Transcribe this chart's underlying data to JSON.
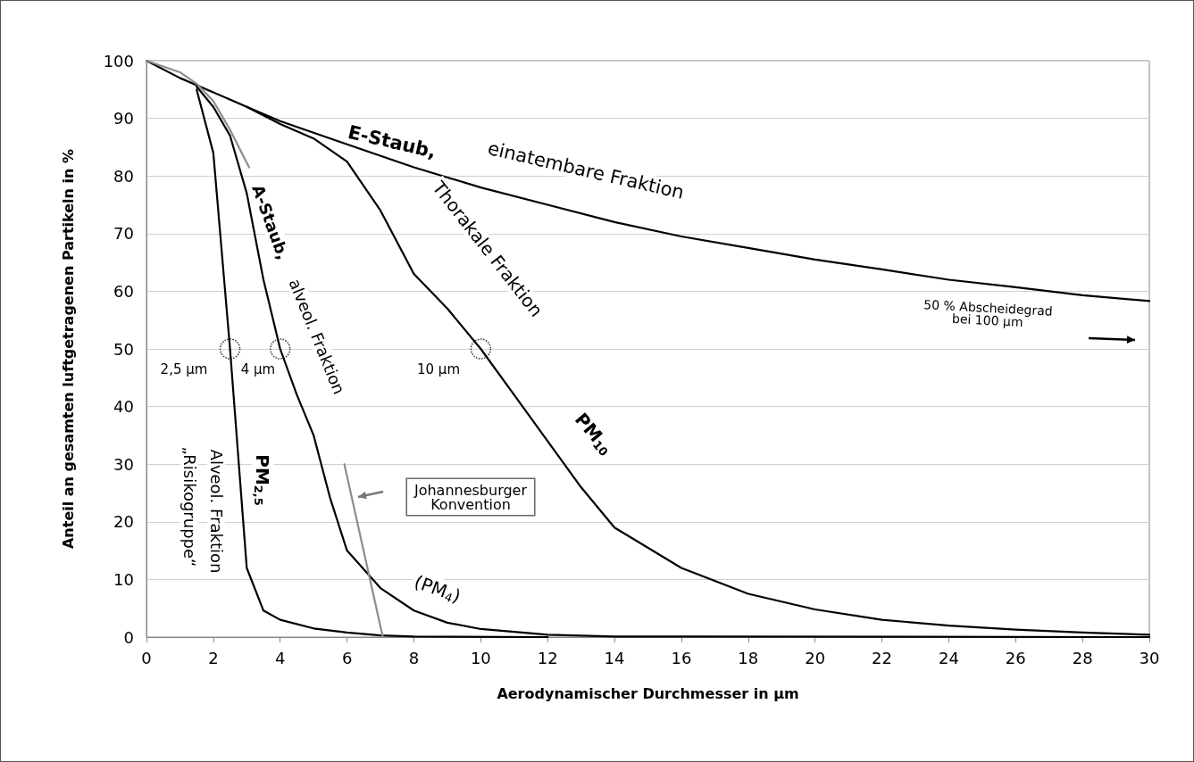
{
  "chart_data": {
    "type": "line",
    "xlabel": "Aerodynamischer Durchmesser in µm",
    "ylabel": "Anteil an gesamten luftgetragenen Partikeln in %",
    "xlim": [
      0,
      30
    ],
    "xticks": [
      0,
      2,
      4,
      6,
      8,
      10,
      12,
      14,
      16,
      18,
      20,
      22,
      24,
      26,
      28,
      30
    ],
    "ylim": [
      0,
      100
    ],
    "yticks": [
      0,
      10,
      20,
      30,
      40,
      50,
      60,
      70,
      80,
      90,
      100
    ],
    "grid": "y",
    "marker": "none",
    "line_style": "solid",
    "series": [
      {
        "color": "#000000",
        "x": [
          0,
          1,
          2,
          3,
          4,
          6,
          8,
          10,
          12,
          14,
          16,
          18,
          20,
          22,
          24,
          26,
          28,
          30
        ],
        "values": [
          100,
          97,
          94.5,
          92,
          89.5,
          85.5,
          81.5,
          78,
          75,
          72,
          69.5,
          67.5,
          65.5,
          63.8,
          62,
          60.7,
          59.3,
          58.3
        ]
      },
      {
        "color": "#000000",
        "x": [
          3,
          4,
          5,
          6,
          7,
          8,
          9,
          10,
          11,
          12,
          13,
          14,
          16,
          18,
          20,
          22,
          24,
          26,
          28,
          30
        ],
        "values": [
          92,
          89,
          86.5,
          82.5,
          74,
          63,
          57,
          50,
          42,
          34,
          26,
          19,
          12,
          7.5,
          4.8,
          3,
          2,
          1.3,
          0.8,
          0.4
        ]
      },
      {
        "color": "#000000",
        "x": [
          1.5,
          2,
          2.5,
          3,
          3.5,
          4,
          4.5,
          5,
          5.5,
          6,
          7,
          8,
          9,
          10,
          12,
          14,
          30
        ],
        "values": [
          95.5,
          92,
          87,
          77,
          62,
          50,
          42,
          35,
          24,
          15,
          8.5,
          4.6,
          2.5,
          1.4,
          0.4,
          0.1,
          0
        ]
      },
      {
        "color": "#000000",
        "x": [
          1.5,
          2,
          2.5,
          3,
          3.5,
          4,
          5,
          6,
          7,
          8,
          12
        ],
        "values": [
          95,
          84,
          50,
          12,
          4.6,
          3,
          1.5,
          0.8,
          0.3,
          0.1,
          0
        ]
      },
      {
        "color": "#8c8c8c",
        "x": [
          0,
          1,
          1.5,
          2,
          2.5,
          3.07,
          4,
          5.92,
          7.07
        ],
        "values": [
          100,
          98,
          96,
          93,
          88,
          81.5,
          null,
          30,
          0
        ]
      },
      {
        "type": "scatter",
        "color": "#000000",
        "marker": "circle",
        "line_style": "dotted",
        "x": [
          2.5,
          4,
          10
        ],
        "values": [
          50,
          50,
          50
        ]
      }
    ],
    "annotations": [
      "E-Staub,",
      "einatembare Fraktion",
      "Thorakale Fraktion",
      "PM$_{10}$",
      "A-Staub,",
      "alveol. Fraktion",
      "PM$_{2,5}$",
      "Alveol. Fraktion",
      "„Risikogruppe“",
      "2,5 µm",
      "4 µm",
      "10 µm",
      "(PM$_{4}$)",
      "Johannesburger\nKonvention",
      "50 % Abscheidegrad\nbei 100 µm"
    ]
  }
}
